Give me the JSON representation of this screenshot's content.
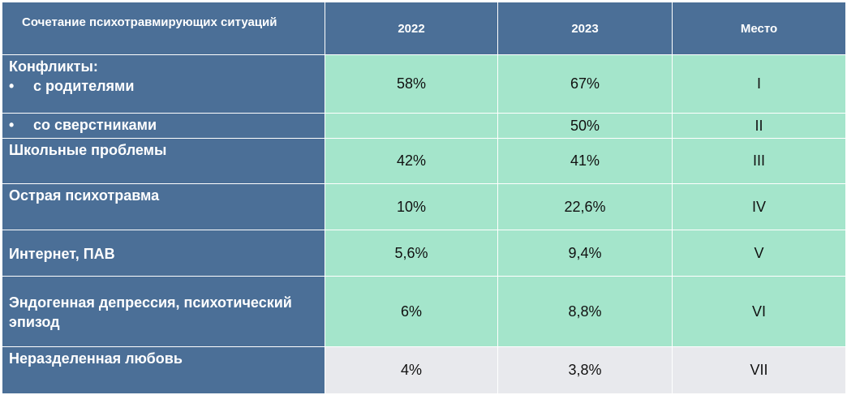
{
  "table": {
    "headers": [
      "Сочетание психотравмирующих ситуаций",
      "2022",
      "2023",
      "Место"
    ],
    "rows": [
      {
        "label": "Конфликты:",
        "sub": "с родителями",
        "v2022": "58%",
        "v2023": "67%",
        "place": "I"
      },
      {
        "sub": "со сверстниками",
        "v2022": "",
        "v2023": "50%",
        "place": "II"
      },
      {
        "label": "Школьные проблемы",
        "v2022": "42%",
        "v2023": "41%",
        "place": "III"
      },
      {
        "label": "Острая психотравма",
        "v2022": "10%",
        "v2023": "22,6%",
        "place": "IV"
      },
      {
        "label": "Интернет, ПАВ",
        "v2022": "5,6%",
        "v2023": "9,4%",
        "place": "V"
      },
      {
        "label": "Эндогенная депрессия, психотический эпизод",
        "v2022": "6%",
        "v2023": "8,8%",
        "place": "VI"
      },
      {
        "label": "Неразделенная любовь",
        "v2022": "4%",
        "v2023": "3,8%",
        "place": "VII"
      }
    ],
    "bullet": "•"
  },
  "colors": {
    "header_bg": "#4b6f97",
    "highlight_bg": "#a4e5cb",
    "last_row_bg": "#e8e9ed"
  }
}
